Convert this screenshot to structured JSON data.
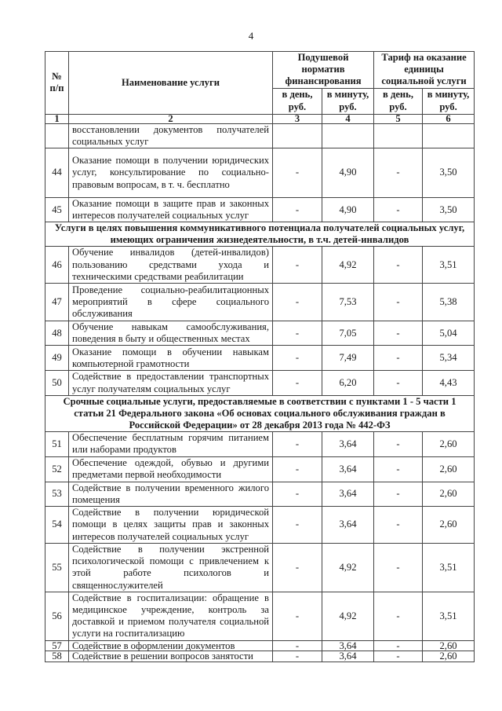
{
  "page_number": "4",
  "header": {
    "col_no": "№ п/п",
    "col_name": "Наименование услуги",
    "group1": "Подушевой норматив финансирования",
    "group2": "Тариф на оказание единицы социальной услуги",
    "per_day": "в день, руб.",
    "per_minute": "в минуту, руб.",
    "col_numbers": [
      "1",
      "2",
      "3",
      "4",
      "5",
      "6"
    ]
  },
  "rows": [
    {
      "type": "row",
      "no": "",
      "name": "восстановлении документов получателей социальных услуг",
      "c3": "",
      "c4": "",
      "c5": "",
      "c6": ""
    },
    {
      "type": "row",
      "no": "44",
      "name": "Оказание помощи в получении юридических услуг, консультирование по социально-правовым вопросам, в т. ч. бесплатно",
      "c3": "-",
      "c4": "4,90",
      "c5": "-",
      "c6": "3,50"
    },
    {
      "type": "row",
      "no": "45",
      "name": "Оказание помощи в защите прав и законных интересов получателей социальных услуг",
      "c3": "-",
      "c4": "4,90",
      "c5": "-",
      "c6": "3,50"
    },
    {
      "type": "section",
      "name": "Услуги в целях повышения коммуникативного потенциала получателей социальных услуг, имеющих ограничения жизнедеятельности, в т.ч. детей-инвалидов"
    },
    {
      "type": "row",
      "no": "46",
      "name": "Обучение инвалидов (детей-инвалидов) пользованию средствами ухода и техническими средствами реабилитации",
      "c3": "-",
      "c4": "4,92",
      "c5": "-",
      "c6": "3,51"
    },
    {
      "type": "row",
      "no": "47",
      "name": "Проведение социально-реабилитационных мероприятий в сфере социального обслуживания",
      "c3": "-",
      "c4": "7,53",
      "c5": "-",
      "c6": "5,38"
    },
    {
      "type": "row",
      "no": "48",
      "name": "Обучение навыкам самообслуживания, поведения в быту и общественных местах",
      "c3": "-",
      "c4": "7,05",
      "c5": "-",
      "c6": "5,04"
    },
    {
      "type": "row",
      "no": "49",
      "name": "Оказание помощи в обучении навыкам компьютерной грамотности",
      "c3": "-",
      "c4": "7,49",
      "c5": "-",
      "c6": "5,34"
    },
    {
      "type": "row",
      "no": "50",
      "name": "Содействие в предоставлении транспортных услуг получателям социальных услуг",
      "c3": "-",
      "c4": "6,20",
      "c5": "-",
      "c6": "4,43"
    },
    {
      "type": "section",
      "name": "Срочные социальные услуги, предоставляемые в соответствии с пунктами 1 - 5 части 1 статьи 21 Федерального закона «Об основах социального обслуживания граждан в Российской Федерации» от 28 декабря 2013 года № 442-ФЗ"
    },
    {
      "type": "row",
      "no": "51",
      "name": "Обеспечение бесплатным горячим питанием или наборами продуктов",
      "c3": "-",
      "c4": "3,64",
      "c5": "-",
      "c6": "2,60"
    },
    {
      "type": "row",
      "no": "52",
      "name": "Обеспечение одеждой, обувью и другими предметами первой необходимости",
      "c3": "-",
      "c4": "3,64",
      "c5": "-",
      "c6": "2,60"
    },
    {
      "type": "row",
      "no": "53",
      "name": "Содействие в получении временного жилого помещения",
      "c3": "-",
      "c4": "3,64",
      "c5": "-",
      "c6": "2,60"
    },
    {
      "type": "row",
      "no": "54",
      "name": "Содействие в получении юридической помощи в целях защиты прав и законных интересов получателей социальных услуг",
      "c3": "-",
      "c4": "3,64",
      "c5": "-",
      "c6": "2,60"
    },
    {
      "type": "row",
      "no": "55",
      "name": "Содействие в получении экстренной психологической помощи с привлечением к этой работе психологов и священнослужителей",
      "c3": "-",
      "c4": "4,92",
      "c5": "-",
      "c6": "3,51"
    },
    {
      "type": "row",
      "no": "56",
      "name": "Содействие в госпитализации: обращение в медицинское учреждение, контроль за доставкой и приемом получателя социальной услуги на госпитализацию",
      "c3": "-",
      "c4": "4,92",
      "c5": "-",
      "c6": "3,51"
    },
    {
      "type": "row",
      "no": "57",
      "name": "Содействие в оформлении документов",
      "c3": "-",
      "c4": "3,64",
      "c5": "-",
      "c6": "2,60"
    },
    {
      "type": "row",
      "no": "58",
      "name": "Содействие в решении вопросов занятости",
      "c3": "-",
      "c4": "3,64",
      "c5": "-",
      "c6": "2,60"
    }
  ]
}
